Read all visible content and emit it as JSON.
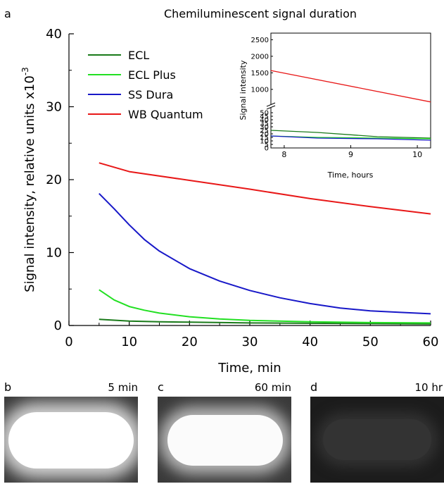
{
  "panels": {
    "a": "a",
    "b": "b",
    "c": "c",
    "d": "d"
  },
  "chart_data": [
    {
      "type": "line",
      "title": "Chemiluminescent signal duration",
      "xlabel": "Time, min",
      "ylabel": "Signal intensity, relative units x10",
      "ylabel_superscript": "-3",
      "xlim": [
        0,
        60
      ],
      "ylim": [
        0,
        40
      ],
      "xticks": [
        0,
        10,
        20,
        30,
        40,
        50,
        60
      ],
      "yticks": [
        0,
        10,
        20,
        30,
        40
      ],
      "legend_position": "top-left",
      "grid": false,
      "series": [
        {
          "name": "ECL",
          "color": "#1a7a1a",
          "x": [
            5,
            10,
            15,
            20,
            30,
            40,
            50,
            60
          ],
          "y": [
            0.85,
            0.6,
            0.5,
            0.45,
            0.35,
            0.3,
            0.25,
            0.2
          ]
        },
        {
          "name": "ECL Plus",
          "color": "#22e022",
          "x": [
            5,
            7.5,
            10,
            12.5,
            15,
            20,
            25,
            30,
            40,
            50,
            60
          ],
          "y": [
            4.9,
            3.5,
            2.6,
            2.1,
            1.7,
            1.2,
            0.9,
            0.7,
            0.5,
            0.4,
            0.35
          ]
        },
        {
          "name": "SS Dura",
          "color": "#1818c8",
          "x": [
            5,
            7.5,
            10,
            12.5,
            15,
            20,
            25,
            30,
            35,
            40,
            45,
            50,
            55,
            60
          ],
          "y": [
            18.1,
            16.0,
            13.8,
            11.8,
            10.2,
            7.8,
            6.1,
            4.8,
            3.8,
            3.0,
            2.4,
            2.0,
            1.8,
            1.6
          ]
        },
        {
          "name": "WB Quantum",
          "color": "#e81818",
          "x": [
            5,
            10,
            20,
            30,
            40,
            50,
            60
          ],
          "y": [
            22.3,
            21.1,
            19.9,
            18.7,
            17.4,
            16.3,
            15.3
          ]
        }
      ]
    },
    {
      "type": "line",
      "title": "",
      "xlabel": "Time, hours",
      "ylabel": "Signal intensity",
      "xlim": [
        7.8,
        10.2
      ],
      "xticks": [
        8,
        9,
        10
      ],
      "ylim_lower": [
        0,
        55
      ],
      "ylim_upper": [
        550,
        2700
      ],
      "yticks_lower": [
        0,
        5,
        10,
        15,
        20,
        25,
        30,
        35,
        40,
        45,
        50
      ],
      "yticks_upper": [
        1000,
        1500,
        2000,
        2500
      ],
      "axis_break": true,
      "series": [
        {
          "name": "ECL",
          "color": "#1a7a1a",
          "x": [
            7.8,
            8.5,
            9.4,
            10.2
          ],
          "y": [
            25,
            22,
            16,
            14
          ]
        },
        {
          "name": "ECL Plus",
          "color": "#22e022",
          "x": [
            7.8,
            8.5,
            9.4,
            10.2
          ],
          "y": [
            17,
            15,
            14,
            13
          ]
        },
        {
          "name": "SS Dura",
          "color": "#1818c8",
          "x": [
            7.8,
            8.5,
            9.4,
            10.2
          ],
          "y": [
            17,
            14,
            13,
            11
          ]
        },
        {
          "name": "WB Quantum",
          "color": "#e81818",
          "x": [
            7.8,
            10.2
          ],
          "y": [
            1570,
            620
          ]
        }
      ]
    }
  ],
  "images": [
    {
      "panel": "b",
      "label": "5 min"
    },
    {
      "panel": "c",
      "label": "60 min"
    },
    {
      "panel": "d",
      "label": "10 hr"
    }
  ]
}
